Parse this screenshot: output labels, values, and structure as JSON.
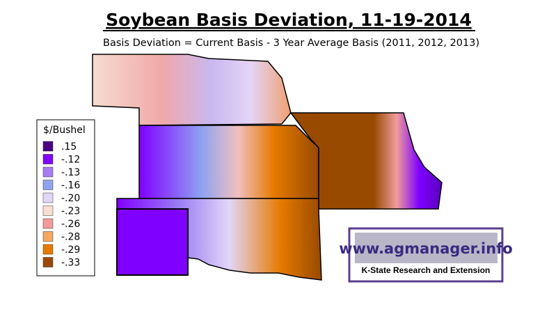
{
  "header": {
    "title": "Soybean Basis Deviation, 11-19-2014",
    "subtitle": "Basis Deviation = Current Basis - 3 Year Average Basis (2011, 2012, 2013)"
  },
  "legend": {
    "title": "$/Bushel",
    "items": [
      {
        "label": ".15",
        "color": "#4b0082"
      },
      {
        "label": "-.12",
        "color": "#7f00ff"
      },
      {
        "label": "-.13",
        "color": "#a77cf2"
      },
      {
        "label": "-.16",
        "color": "#8fa3f0"
      },
      {
        "label": "-.20",
        "color": "#e2d6f8"
      },
      {
        "label": "-.23",
        "color": "#f8ddd0"
      },
      {
        "label": "-.26",
        "color": "#f09c9c"
      },
      {
        "label": "-.28",
        "color": "#f6a860"
      },
      {
        "label": "-.29",
        "color": "#e67a00"
      },
      {
        "label": "-.33",
        "color": "#984a00"
      }
    ]
  },
  "logo": {
    "url": "www.agmanager.info",
    "org": "K-State Research and Extension"
  }
}
